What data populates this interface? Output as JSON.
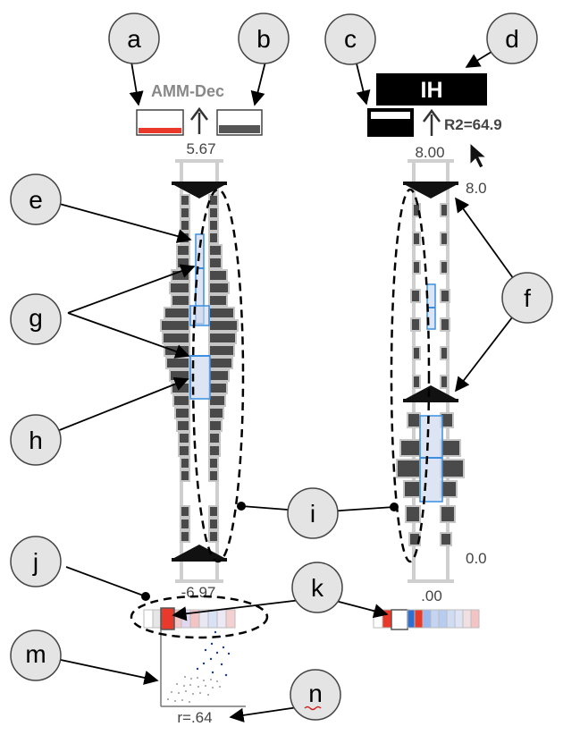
{
  "callouts": {
    "a": "a",
    "b": "b",
    "c": "c",
    "d": "d",
    "e": "e",
    "f": "f",
    "g": "g",
    "h": "h",
    "i": "i",
    "j": "j",
    "k": "k",
    "m": "m",
    "n": "n"
  },
  "left_axis": {
    "title": "AMM-Dec",
    "top_value": "5.67",
    "bottom_value": "-6.97",
    "correlation": "r=.64"
  },
  "right_axis": {
    "title": "IH",
    "r2": "R2=64.9",
    "top_value": "8.00",
    "range_top_label": "8.0",
    "range_bottom_label": "0.0",
    "bottom_value": ".00"
  },
  "colors": {
    "red": "#e8392a",
    "blue_outline": "#3a8fe0",
    "box_fill": "#cfd8ee",
    "dark_bar": "#4a4a4a",
    "bar_edge": "#c6c6c6"
  }
}
